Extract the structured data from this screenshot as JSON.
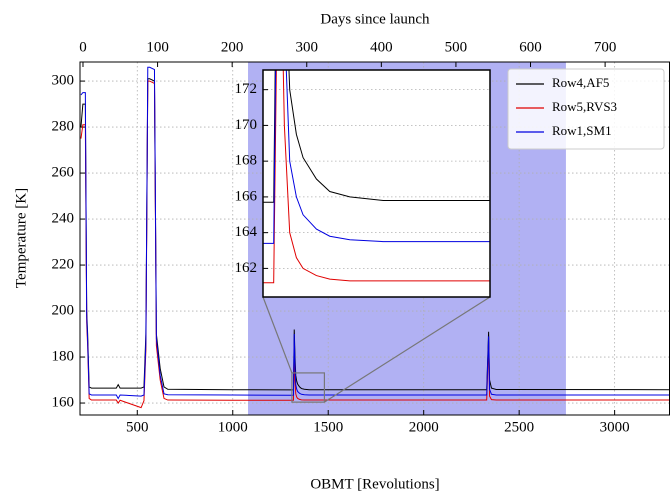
{
  "chart_data": {
    "type": "line",
    "x_label": "OBMT [Revolutions]",
    "x2_label": "Days since launch",
    "y_label": "Temperature [K]",
    "x": [
      205,
      215,
      228,
      235,
      240,
      248,
      260,
      390,
      400,
      410,
      520,
      535,
      545,
      555,
      565,
      590,
      600,
      620,
      640,
      660,
      1000,
      1300,
      1318,
      1322,
      1326,
      1330,
      1335,
      1340,
      1350,
      1360,
      1375,
      1400,
      1440,
      1500,
      2000,
      2330,
      2340,
      2345,
      2355,
      2380,
      3290
    ],
    "series": [
      {
        "name": "Row4,AF5",
        "color": "#000000",
        "values": [
          280,
          290,
          290,
          200,
          190,
          167,
          166.5,
          166.5,
          168,
          166.5,
          166.5,
          167,
          190,
          301,
          301,
          300,
          190,
          175,
          167,
          166,
          165.8,
          165.7,
          165.7,
          192,
          180,
          172,
          169.5,
          168.2,
          167,
          166.3,
          166,
          165.8,
          165.8,
          165.8,
          165.8,
          165.8,
          191,
          170,
          166.5,
          165.9,
          165.8
        ]
      },
      {
        "name": "Row5,RVS3",
        "color": "#e00000",
        "values": [
          275,
          281,
          281,
          195,
          185,
          162,
          161.3,
          161.3,
          160,
          161.2,
          158,
          161,
          183,
          300,
          300,
          299,
          185,
          170,
          162,
          161.3,
          161.2,
          161.2,
          161.2,
          185,
          170,
          164,
          162.6,
          162,
          161.6,
          161.4,
          161.3,
          161.3,
          161.3,
          161.3,
          161.3,
          161.3,
          186,
          163,
          161.5,
          161.3,
          161.3
        ]
      },
      {
        "name": "Row1,SM1",
        "color": "#0000e0",
        "values": [
          294,
          295,
          295,
          198,
          187,
          164,
          163.5,
          163.5,
          162,
          163.5,
          163,
          163.5,
          186,
          306,
          306,
          305,
          188,
          172,
          164,
          163.6,
          163.5,
          163.4,
          163.4,
          190,
          176,
          168,
          166,
          165,
          164.2,
          163.8,
          163.6,
          163.5,
          163.5,
          163.5,
          163.5,
          163.5,
          189,
          166,
          163.8,
          163.5,
          163.5
        ]
      }
    ],
    "xlim": [
      200,
      3290
    ],
    "ylim": [
      154.8,
      308.3
    ],
    "xticks": [
      500,
      1000,
      1500,
      2000,
      2500,
      3000
    ],
    "yticks": [
      160,
      180,
      200,
      220,
      240,
      260,
      280,
      300
    ],
    "x2lim": [
      -4,
      787
    ],
    "x2ticks": [
      0,
      100,
      200,
      300,
      400,
      500,
      600,
      700
    ],
    "grid": true,
    "legend": "upper right",
    "shade_xlim": [
      1080,
      2745
    ],
    "shade_color": "#a8a8f2",
    "inset": {
      "xlim": [
        1310,
        1480
      ],
      "ylim": [
        160.4,
        173.1
      ],
      "yticks": [
        162,
        164,
        166,
        168,
        170,
        172
      ]
    }
  }
}
